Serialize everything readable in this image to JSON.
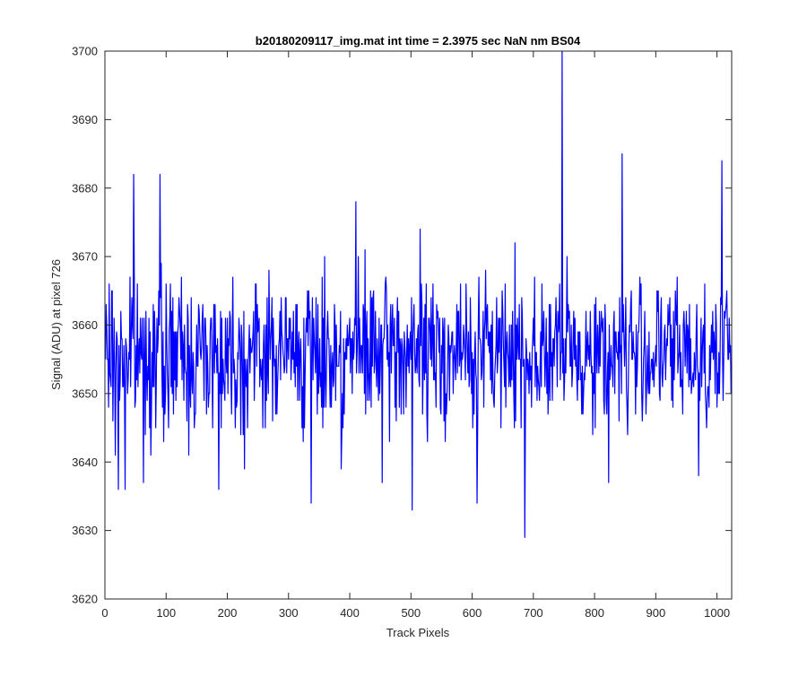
{
  "figure": {
    "background": "#ffffff"
  },
  "chart_data": {
    "type": "line",
    "title": "b20180209117_img.mat int time = 2.3975 sec  NaN nm BS04",
    "xlabel": "Track Pixels",
    "ylabel": "Signal (ADU) at pixel 726",
    "xlim": [
      0,
      1024
    ],
    "ylim": [
      3620,
      3700
    ],
    "xticks": [
      0,
      100,
      200,
      300,
      400,
      500,
      600,
      700,
      800,
      900,
      1000
    ],
    "yticks": [
      3620,
      3630,
      3640,
      3650,
      3660,
      3670,
      3680,
      3690,
      3700
    ],
    "grid": false,
    "legend": "none",
    "series": [
      {
        "color": "#0000ff",
        "x_start": 1,
        "x_step": 1,
        "n_points": 1024,
        "mean": 3656,
        "typical_range": [
          3642,
          3672
        ],
        "notable_points": [
          {
            "x": 17,
            "y": 3641
          },
          {
            "x": 22,
            "y": 3636
          },
          {
            "x": 33,
            "y": 3636
          },
          {
            "x": 47,
            "y": 3682
          },
          {
            "x": 63,
            "y": 3637
          },
          {
            "x": 90,
            "y": 3682
          },
          {
            "x": 96,
            "y": 3643
          },
          {
            "x": 137,
            "y": 3641
          },
          {
            "x": 186,
            "y": 3636
          },
          {
            "x": 228,
            "y": 3639
          },
          {
            "x": 337,
            "y": 3634
          },
          {
            "x": 386,
            "y": 3639
          },
          {
            "x": 410,
            "y": 3678
          },
          {
            "x": 453,
            "y": 3637
          },
          {
            "x": 502,
            "y": 3633
          },
          {
            "x": 515,
            "y": 3674
          },
          {
            "x": 608,
            "y": 3634
          },
          {
            "x": 670,
            "y": 3672
          },
          {
            "x": 686,
            "y": 3629
          },
          {
            "x": 747,
            "y": 3700
          },
          {
            "x": 823,
            "y": 3637
          },
          {
            "x": 845,
            "y": 3685
          },
          {
            "x": 970,
            "y": 3638
          },
          {
            "x": 1008,
            "y": 3684
          },
          {
            "x": 1020,
            "y": 3661
          }
        ]
      }
    ]
  }
}
